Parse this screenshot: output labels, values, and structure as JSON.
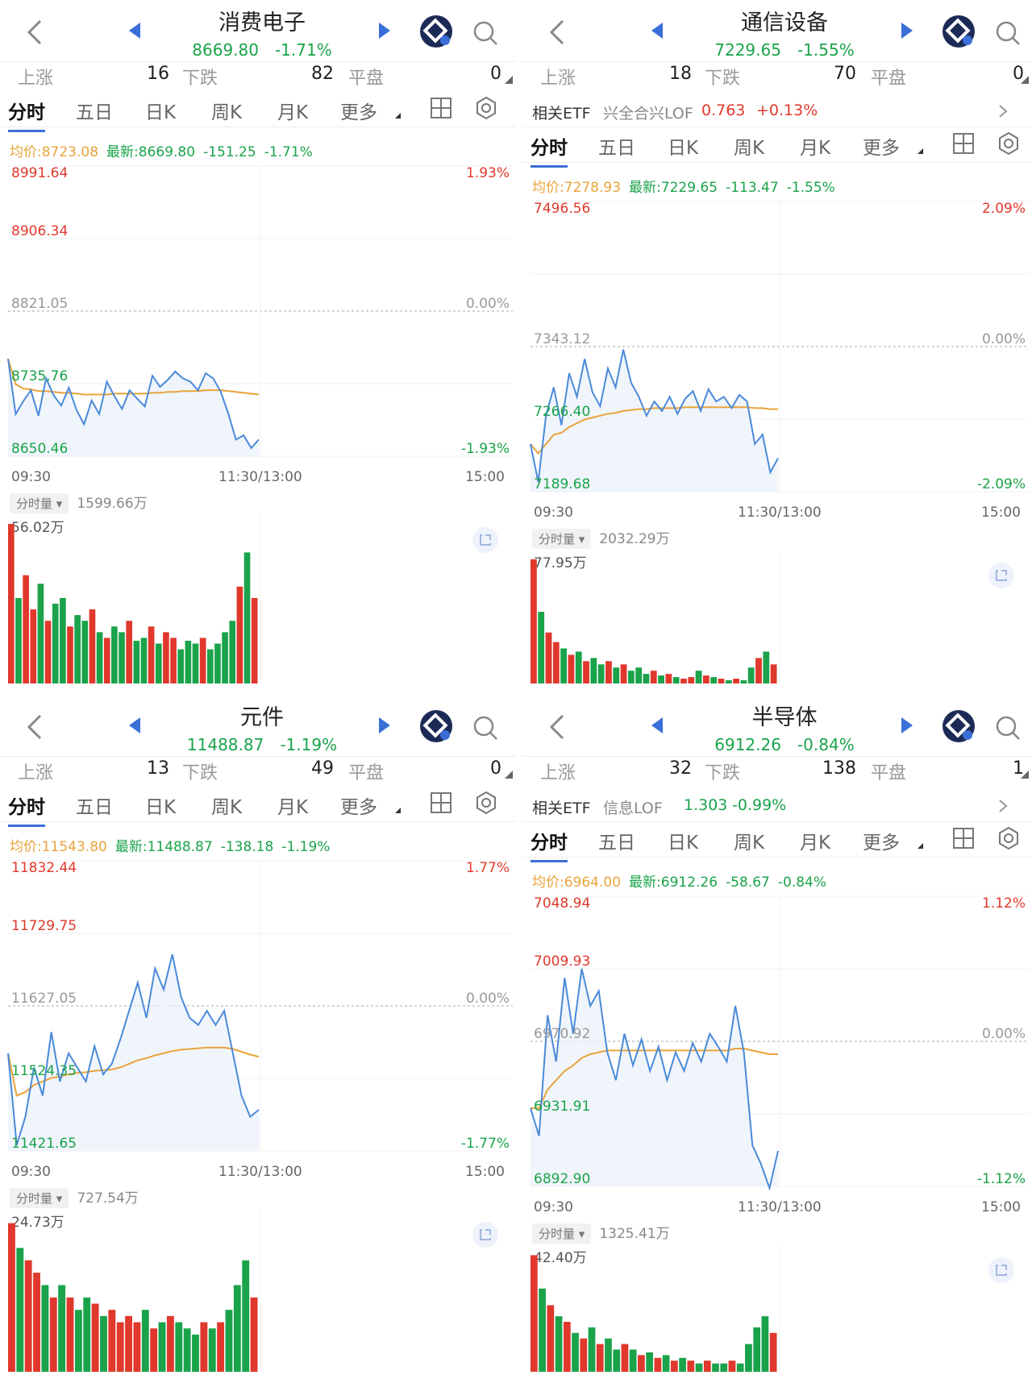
{
  "common": {
    "stats_labels": {
      "up": "上涨",
      "down": "下跌",
      "flat": "平盘"
    },
    "tabs": [
      "分时",
      "五日",
      "日K",
      "周K",
      "月K",
      "更多"
    ],
    "time_labels": {
      "start": "09:30",
      "mid": "11:30/13:00",
      "end": "15:00"
    },
    "vol_pill": "分时量 ▾",
    "etf_label": "相关ETF",
    "colors": {
      "up": "#e0382c",
      "down": "#1aa34a",
      "price_line": "#4a8ad8",
      "avg_line": "#e9a33a",
      "accent": "#3b6fd8"
    }
  },
  "panels": [
    {
      "title": "消费电子",
      "price": "8669.80",
      "change_pct": "-1.71%",
      "up": "16",
      "down": "82",
      "flat": "0",
      "etf": null,
      "avg_label": "均价:8723.08",
      "latest_label": "最新:8669.80",
      "change": "-151.25",
      "change_pct2": "-1.71%",
      "y_left": [
        "8991.64",
        "8906.34",
        "8821.05",
        "8735.76",
        "8650.46"
      ],
      "y_right": [
        "1.93%",
        "",
        "0.00%",
        "",
        "-1.93%"
      ],
      "vol_total": "1599.66万",
      "vol_max": "56.02万",
      "chart_data": {
        "type": "line",
        "ylim": [
          8650.46,
          8991.64
        ],
        "base": 8821.05,
        "price": [
          8765,
          8700,
          8715,
          8728,
          8698,
          8742,
          8722,
          8710,
          8731,
          8705,
          8688,
          8716,
          8700,
          8738,
          8721,
          8706,
          8728,
          8718,
          8709,
          8745,
          8732,
          8740,
          8750,
          8742,
          8738,
          8728,
          8748,
          8742,
          8726,
          8700,
          8670,
          8675,
          8660,
          8670
        ],
        "avg": [
          8765,
          8735,
          8730,
          8729,
          8727,
          8727,
          8726,
          8725,
          8725,
          8724,
          8723,
          8723,
          8723,
          8723,
          8724,
          8724,
          8724,
          8724,
          8724,
          8725,
          8725,
          8726,
          8726,
          8727,
          8727,
          8727,
          8728,
          8728,
          8728,
          8727,
          8726,
          8725,
          8724,
          8723
        ],
        "volume": [
          56,
          30,
          38,
          26,
          35,
          22,
          28,
          30,
          20,
          24,
          22,
          26,
          18,
          16,
          20,
          18,
          22,
          15,
          16,
          20,
          14,
          18,
          16,
          12,
          15,
          14,
          16,
          12,
          14,
          18,
          22,
          34,
          46,
          30
        ],
        "volume_max": 56.02
      }
    },
    {
      "title": "通信设备",
      "price": "7229.65",
      "change_pct": "-1.55%",
      "up": "18",
      "down": "70",
      "flat": "0",
      "etf": {
        "name": "兴全合兴LOF",
        "price": "0.763",
        "pct": "+0.13%"
      },
      "avg_label": "均价:7278.93",
      "latest_label": "最新:7229.65",
      "change": "-113.47",
      "change_pct2": "-1.55%",
      "y_left": [
        "7496.56",
        "",
        "7343.12",
        "7266.40",
        "7189.68"
      ],
      "y_right": [
        "2.09%",
        "",
        "0.00%",
        "",
        "-2.09%"
      ],
      "vol_total": "2032.29万",
      "vol_max": "77.95万",
      "chart_data": {
        "type": "line",
        "ylim": [
          7189.68,
          7496.56
        ],
        "base": 7343.12,
        "price": [
          7240,
          7200,
          7270,
          7300,
          7260,
          7315,
          7290,
          7330,
          7295,
          7280,
          7320,
          7300,
          7340,
          7305,
          7290,
          7270,
          7285,
          7275,
          7290,
          7272,
          7288,
          7296,
          7275,
          7298,
          7285,
          7290,
          7278,
          7292,
          7285,
          7240,
          7250,
          7210,
          7225
        ],
        "avg": [
          7240,
          7230,
          7240,
          7250,
          7252,
          7258,
          7262,
          7266,
          7268,
          7270,
          7272,
          7273,
          7275,
          7276,
          7277,
          7277,
          7278,
          7278,
          7278,
          7278,
          7279,
          7279,
          7279,
          7279,
          7279,
          7279,
          7279,
          7279,
          7279,
          7278,
          7278,
          7277,
          7277
        ],
        "volume": [
          78,
          45,
          32,
          26,
          22,
          18,
          20,
          14,
          16,
          12,
          14,
          10,
          12,
          8,
          10,
          6,
          8,
          5,
          6,
          4,
          3,
          4,
          8,
          5,
          4,
          3,
          2,
          3,
          2,
          10,
          16,
          20,
          12
        ],
        "volume_max": 77.95
      }
    },
    {
      "title": "元件",
      "price": "11488.87",
      "change_pct": "-1.19%",
      "up": "13",
      "down": "49",
      "flat": "0",
      "etf": null,
      "avg_label": "均价:11543.80",
      "latest_label": "最新:11488.87",
      "change": "-138.18",
      "change_pct2": "-1.19%",
      "y_left": [
        "11832.44",
        "11729.75",
        "11627.05",
        "11524.35",
        "11421.65"
      ],
      "y_right": [
        "1.77%",
        "",
        "0.00%",
        "",
        "-1.77%"
      ],
      "vol_total": "727.54万",
      "vol_max": "24.73万",
      "chart_data": {
        "type": "line",
        "ylim": [
          11421.65,
          11832.44
        ],
        "base": 11627.05,
        "price": [
          11560,
          11430,
          11470,
          11540,
          11500,
          11590,
          11520,
          11560,
          11540,
          11520,
          11570,
          11530,
          11545,
          11580,
          11620,
          11660,
          11610,
          11680,
          11650,
          11700,
          11640,
          11610,
          11600,
          11620,
          11600,
          11620,
          11560,
          11500,
          11470,
          11480
        ],
        "avg": [
          11560,
          11500,
          11505,
          11515,
          11520,
          11525,
          11527,
          11530,
          11532,
          11533,
          11535,
          11536,
          11537,
          11540,
          11545,
          11550,
          11553,
          11557,
          11560,
          11563,
          11565,
          11566,
          11567,
          11568,
          11568,
          11568,
          11566,
          11562,
          11558,
          11555
        ],
        "volume": [
          24,
          20,
          18,
          16,
          14,
          12,
          14,
          12,
          10,
          12,
          11,
          9,
          10,
          8,
          9,
          8,
          10,
          7,
          8,
          9,
          8,
          7,
          6,
          8,
          7,
          8,
          10,
          14,
          18,
          12
        ],
        "volume_max": 24.73
      }
    },
    {
      "title": "半导体",
      "price": "6912.26",
      "change_pct": "-0.84%",
      "up": "32",
      "down": "138",
      "flat": "1",
      "etf": {
        "name": "信息LOF",
        "price": "1.303",
        "pct": "-0.99%"
      },
      "avg_label": "均价:6964.00",
      "latest_label": "最新:6912.26",
      "change": "-58.67",
      "change_pct2": "-0.84%",
      "y_left": [
        "7048.94",
        "7009.93",
        "6970.92",
        "6931.91",
        "6892.90"
      ],
      "y_right": [
        "1.12%",
        "",
        "0.00%",
        "",
        "-1.12%"
      ],
      "vol_total": "1325.41万",
      "vol_max": "42.40万",
      "chart_data": {
        "type": "line",
        "ylim": [
          6892.9,
          7048.94
        ],
        "base": 6970.92,
        "price": [
          6935,
          6920,
          6985,
          6960,
          7005,
          6975,
          7010,
          6990,
          6998,
          6965,
          6950,
          6975,
          6958,
          6972,
          6955,
          6968,
          6950,
          6965,
          6955,
          6970,
          6960,
          6975,
          6968,
          6960,
          6990,
          6965,
          6915,
          6905,
          6892,
          6912
        ],
        "avg": [
          6935,
          6935,
          6945,
          6950,
          6955,
          6958,
          6962,
          6964,
          6965,
          6966,
          6966,
          6966,
          6966,
          6966,
          6966,
          6966,
          6966,
          6966,
          6966,
          6966,
          6966,
          6966,
          6966,
          6966,
          6967,
          6967,
          6966,
          6965,
          6964,
          6964
        ],
        "volume": [
          42,
          30,
          24,
          20,
          18,
          14,
          12,
          16,
          10,
          12,
          8,
          10,
          8,
          6,
          7,
          5,
          6,
          4,
          5,
          4,
          3,
          4,
          3,
          3,
          4,
          3,
          10,
          16,
          20,
          14
        ],
        "volume_max": 42.4
      }
    }
  ]
}
